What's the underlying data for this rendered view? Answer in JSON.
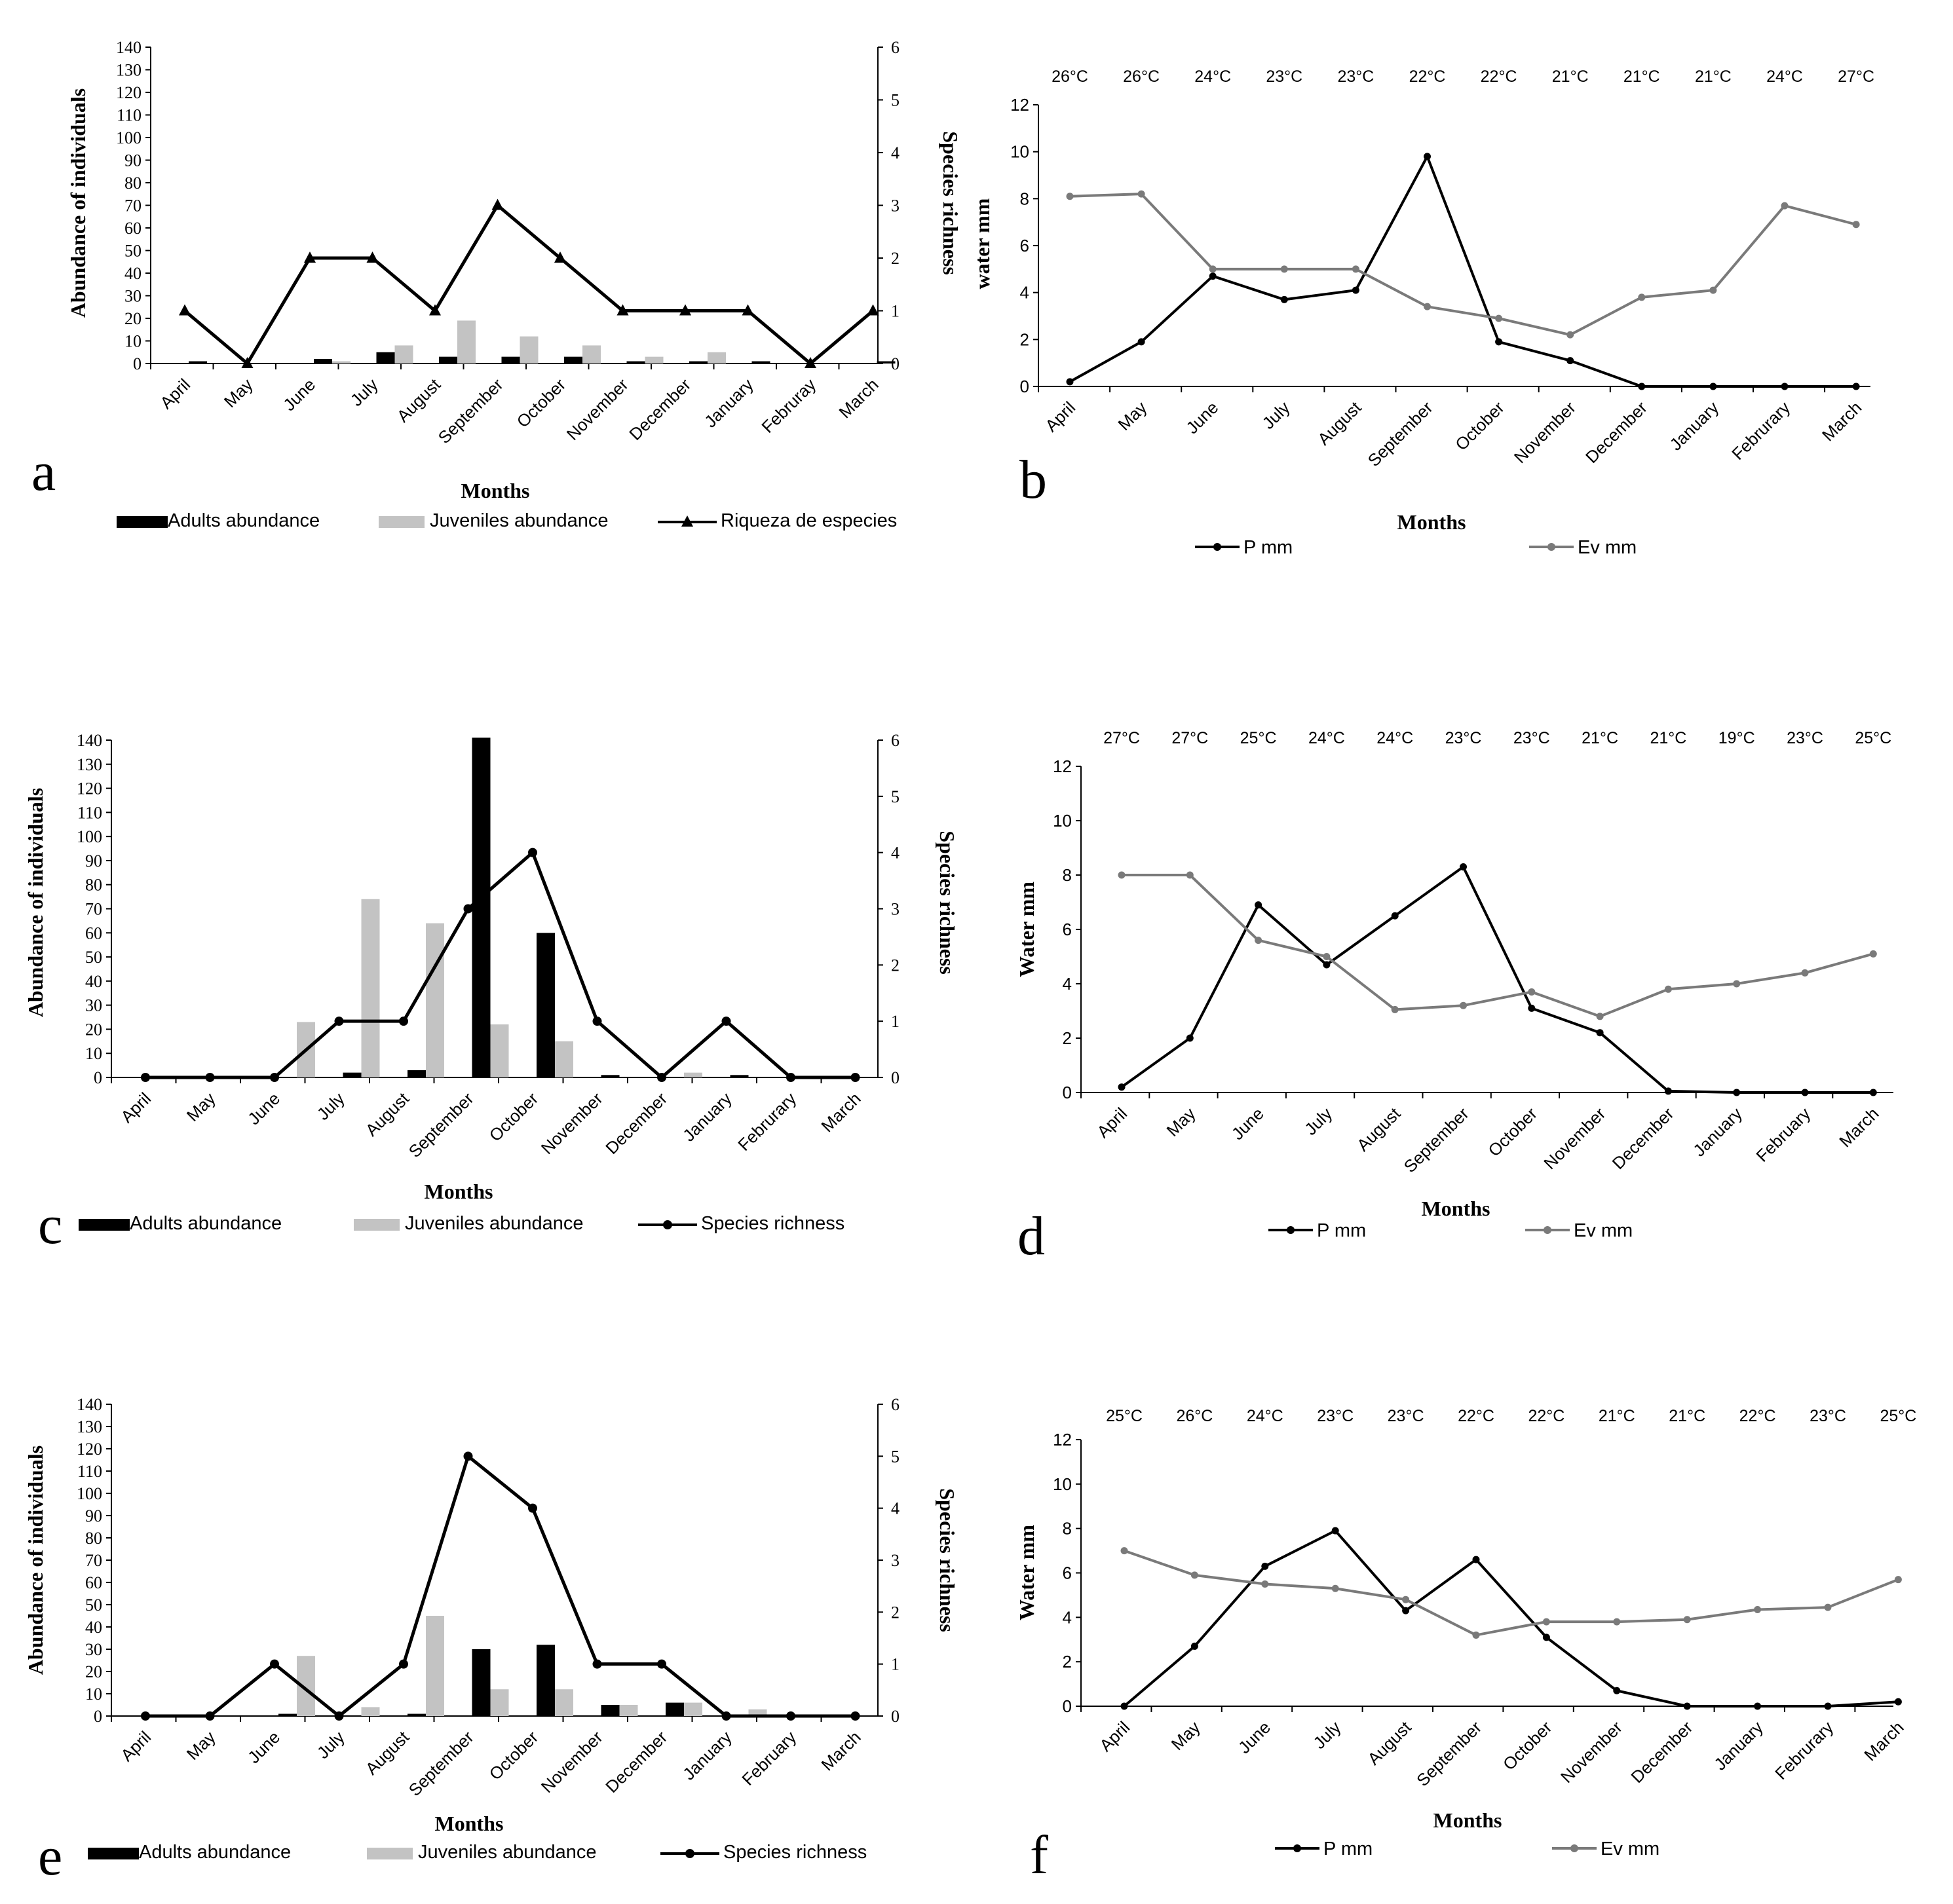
{
  "colors": {
    "adults": "#000000",
    "juveniles": "#c3c3c3",
    "richness": "#000000",
    "precip": "#000000",
    "evap": "#7a7a7a",
    "axis": "#000000"
  },
  "chart_data": [
    {
      "panel": "a",
      "type": "bar",
      "xlabel": "Months",
      "ylabel": "Abundance of individuals",
      "y2label": "Species richness",
      "ylim": [
        0,
        140
      ],
      "yticks": [
        "0",
        "10",
        "20",
        "30",
        "40",
        "50",
        "60",
        "70",
        "80",
        "90",
        "100",
        "110",
        "120",
        "130",
        "140"
      ],
      "y2lim": [
        0,
        6
      ],
      "y2ticks": [
        "0",
        "1",
        "2",
        "3",
        "4",
        "5",
        "6"
      ],
      "categories": [
        "April",
        "May",
        "June",
        "July",
        "August",
        "September",
        "October",
        "November",
        "December",
        "January",
        "Februray",
        "March"
      ],
      "series": [
        {
          "name": "Adults abundance",
          "kind": "bar",
          "values": [
            1,
            0,
            2,
            5,
            3,
            3,
            3,
            1,
            1,
            1,
            0,
            1
          ]
        },
        {
          "name": "Juveniles abundance",
          "kind": "bar",
          "values": [
            0,
            0,
            1,
            8,
            19,
            12,
            8,
            3,
            5,
            0,
            0,
            0
          ]
        },
        {
          "name": "Riqueza de especies",
          "kind": "line",
          "axis": "right",
          "marker": "triangle",
          "values": [
            1,
            0,
            2,
            2,
            1,
            3,
            2,
            1,
            1,
            1,
            0,
            1
          ]
        }
      ],
      "legend": [
        "Adults abundance",
        "Juveniles abundance",
        "Riqueza de especies"
      ]
    },
    {
      "panel": "b",
      "type": "line",
      "xlabel": "Months",
      "ylabel": "water mm",
      "ylim": [
        0,
        12
      ],
      "yticks": [
        "0",
        "2",
        "4",
        "6",
        "8",
        "10",
        "12"
      ],
      "categories": [
        "April",
        "May",
        "June",
        "July",
        "August",
        "September",
        "October",
        "November",
        "December",
        "January",
        "Februrary",
        "March"
      ],
      "temperatures": [
        "26°C",
        "26°C",
        "24°C",
        "23°C",
        "23°C",
        "22°C",
        "22°C",
        "21°C",
        "21°C",
        "21°C",
        "24°C",
        "27°C"
      ],
      "series": [
        {
          "name": "P mm",
          "values": [
            0.2,
            1.9,
            4.7,
            3.7,
            4.1,
            9.8,
            1.9,
            1.1,
            0,
            0,
            0,
            0
          ]
        },
        {
          "name": "Ev mm",
          "values": [
            8.1,
            8.2,
            5,
            5,
            5,
            3.4,
            2.9,
            2.2,
            3.8,
            4.1,
            7.7,
            6.9
          ]
        }
      ],
      "legend": [
        "P mm",
        "Ev mm"
      ]
    },
    {
      "panel": "c",
      "type": "bar",
      "xlabel": "Months",
      "ylabel": "Abundance of individuals",
      "y2label": "Species richness",
      "ylim": [
        0,
        140
      ],
      "yticks": [
        "0",
        "10",
        "20",
        "30",
        "40",
        "50",
        "60",
        "70",
        "80",
        "90",
        "100",
        "110",
        "120",
        "130",
        "140"
      ],
      "y2lim": [
        0,
        6
      ],
      "y2ticks": [
        "0",
        "1",
        "2",
        "3",
        "4",
        "5",
        "6"
      ],
      "categories": [
        "April",
        "May",
        "June",
        "July",
        "August",
        "September",
        "October",
        "November",
        "December",
        "January",
        "Februrary",
        "March"
      ],
      "series": [
        {
          "name": "Adults abundance",
          "kind": "bar",
          "values": [
            0,
            0,
            0,
            2,
            3,
            141,
            60,
            1,
            0,
            1,
            0,
            0
          ]
        },
        {
          "name": "Juveniles abundance",
          "kind": "bar",
          "values": [
            0,
            0,
            23,
            74,
            64,
            22,
            15,
            0,
            2,
            0,
            0,
            0
          ]
        },
        {
          "name": "Species richness",
          "kind": "line",
          "axis": "right",
          "marker": "circle",
          "values": [
            0,
            0,
            0,
            1,
            1,
            3,
            4,
            1,
            0,
            1,
            0,
            0
          ]
        }
      ],
      "legend": [
        "Adults abundance",
        "Juveniles abundance",
        "Species richness"
      ]
    },
    {
      "panel": "d",
      "type": "line",
      "xlabel": "Months",
      "ylabel": "Water mm",
      "ylim": [
        0,
        12
      ],
      "yticks": [
        "0",
        "2",
        "4",
        "6",
        "8",
        "10",
        "12"
      ],
      "categories": [
        "April",
        "May",
        "June",
        "July",
        "August",
        "September",
        "October",
        "November",
        "December",
        "January",
        "February",
        "March"
      ],
      "temperatures": [
        "27°C",
        "27°C",
        "25°C",
        "24°C",
        "24°C",
        "23°C",
        "23°C",
        "21°C",
        "21°C",
        "19°C",
        "23°C",
        "25°C"
      ],
      "series": [
        {
          "name": "P mm",
          "values": [
            0.2,
            2,
            6.9,
            4.7,
            6.5,
            8.3,
            3.1,
            2.2,
            0.05,
            0,
            0,
            0
          ]
        },
        {
          "name": "Ev mm",
          "values": [
            8,
            8,
            5.6,
            5,
            3.05,
            3.2,
            3.7,
            2.8,
            3.8,
            4,
            4.4,
            5.1
          ]
        }
      ],
      "legend": [
        "P mm",
        "Ev mm"
      ]
    },
    {
      "panel": "e",
      "type": "bar",
      "xlabel": "Months",
      "ylabel": "Abundance of individuals",
      "y2label": "Species richness",
      "ylim": [
        0,
        140
      ],
      "yticks": [
        "0",
        "10",
        "20",
        "30",
        "40",
        "50",
        "60",
        "70",
        "80",
        "90",
        "100",
        "110",
        "120",
        "130",
        "140"
      ],
      "y2lim": [
        0,
        6
      ],
      "y2ticks": [
        "0",
        "1",
        "2",
        "3",
        "4",
        "5",
        "6"
      ],
      "categories": [
        "April",
        "May",
        "June",
        "July",
        "August",
        "September",
        "October",
        "November",
        "December",
        "January",
        "February",
        "March"
      ],
      "series": [
        {
          "name": "Adults abundance",
          "kind": "bar",
          "values": [
            0,
            0,
            1,
            0,
            1,
            30,
            32,
            5,
            6,
            0,
            0,
            0
          ]
        },
        {
          "name": "Juveniles abundance",
          "kind": "bar",
          "values": [
            0,
            0,
            27,
            4,
            45,
            12,
            12,
            5,
            6,
            3,
            0,
            0
          ]
        },
        {
          "name": "Species richness",
          "kind": "line",
          "axis": "right",
          "marker": "circle",
          "values": [
            0,
            0,
            1,
            0,
            1,
            5,
            4,
            1,
            1,
            0,
            0,
            0
          ]
        }
      ],
      "legend": [
        "Adults abundance",
        "Juveniles abundance",
        "Species richness"
      ]
    },
    {
      "panel": "f",
      "type": "line",
      "xlabel": "Months",
      "ylabel": "Water mm",
      "ylim": [
        0,
        12
      ],
      "yticks": [
        "0",
        "2",
        "4",
        "6",
        "8",
        "10",
        "12"
      ],
      "categories": [
        "April",
        "May",
        "June",
        "July",
        "August",
        "September",
        "October",
        "November",
        "December",
        "January",
        "Februrary",
        "March"
      ],
      "temperatures": [
        "25°C",
        "26°C",
        "24°C",
        "23°C",
        "23°C",
        "22°C",
        "22°C",
        "21°C",
        "21°C",
        "22°C",
        "23°C",
        "25°C"
      ],
      "series": [
        {
          "name": "P mm",
          "values": [
            0,
            2.7,
            6.3,
            7.9,
            4.3,
            6.6,
            3.1,
            0.7,
            0,
            0,
            0,
            0.2
          ]
        },
        {
          "name": "Ev mm",
          "values": [
            7,
            5.9,
            5.5,
            5.3,
            4.8,
            3.2,
            3.8,
            3.8,
            3.9,
            4.35,
            4.45,
            5.7
          ]
        }
      ],
      "legend": [
        "P mm",
        "Ev mm"
      ]
    }
  ]
}
